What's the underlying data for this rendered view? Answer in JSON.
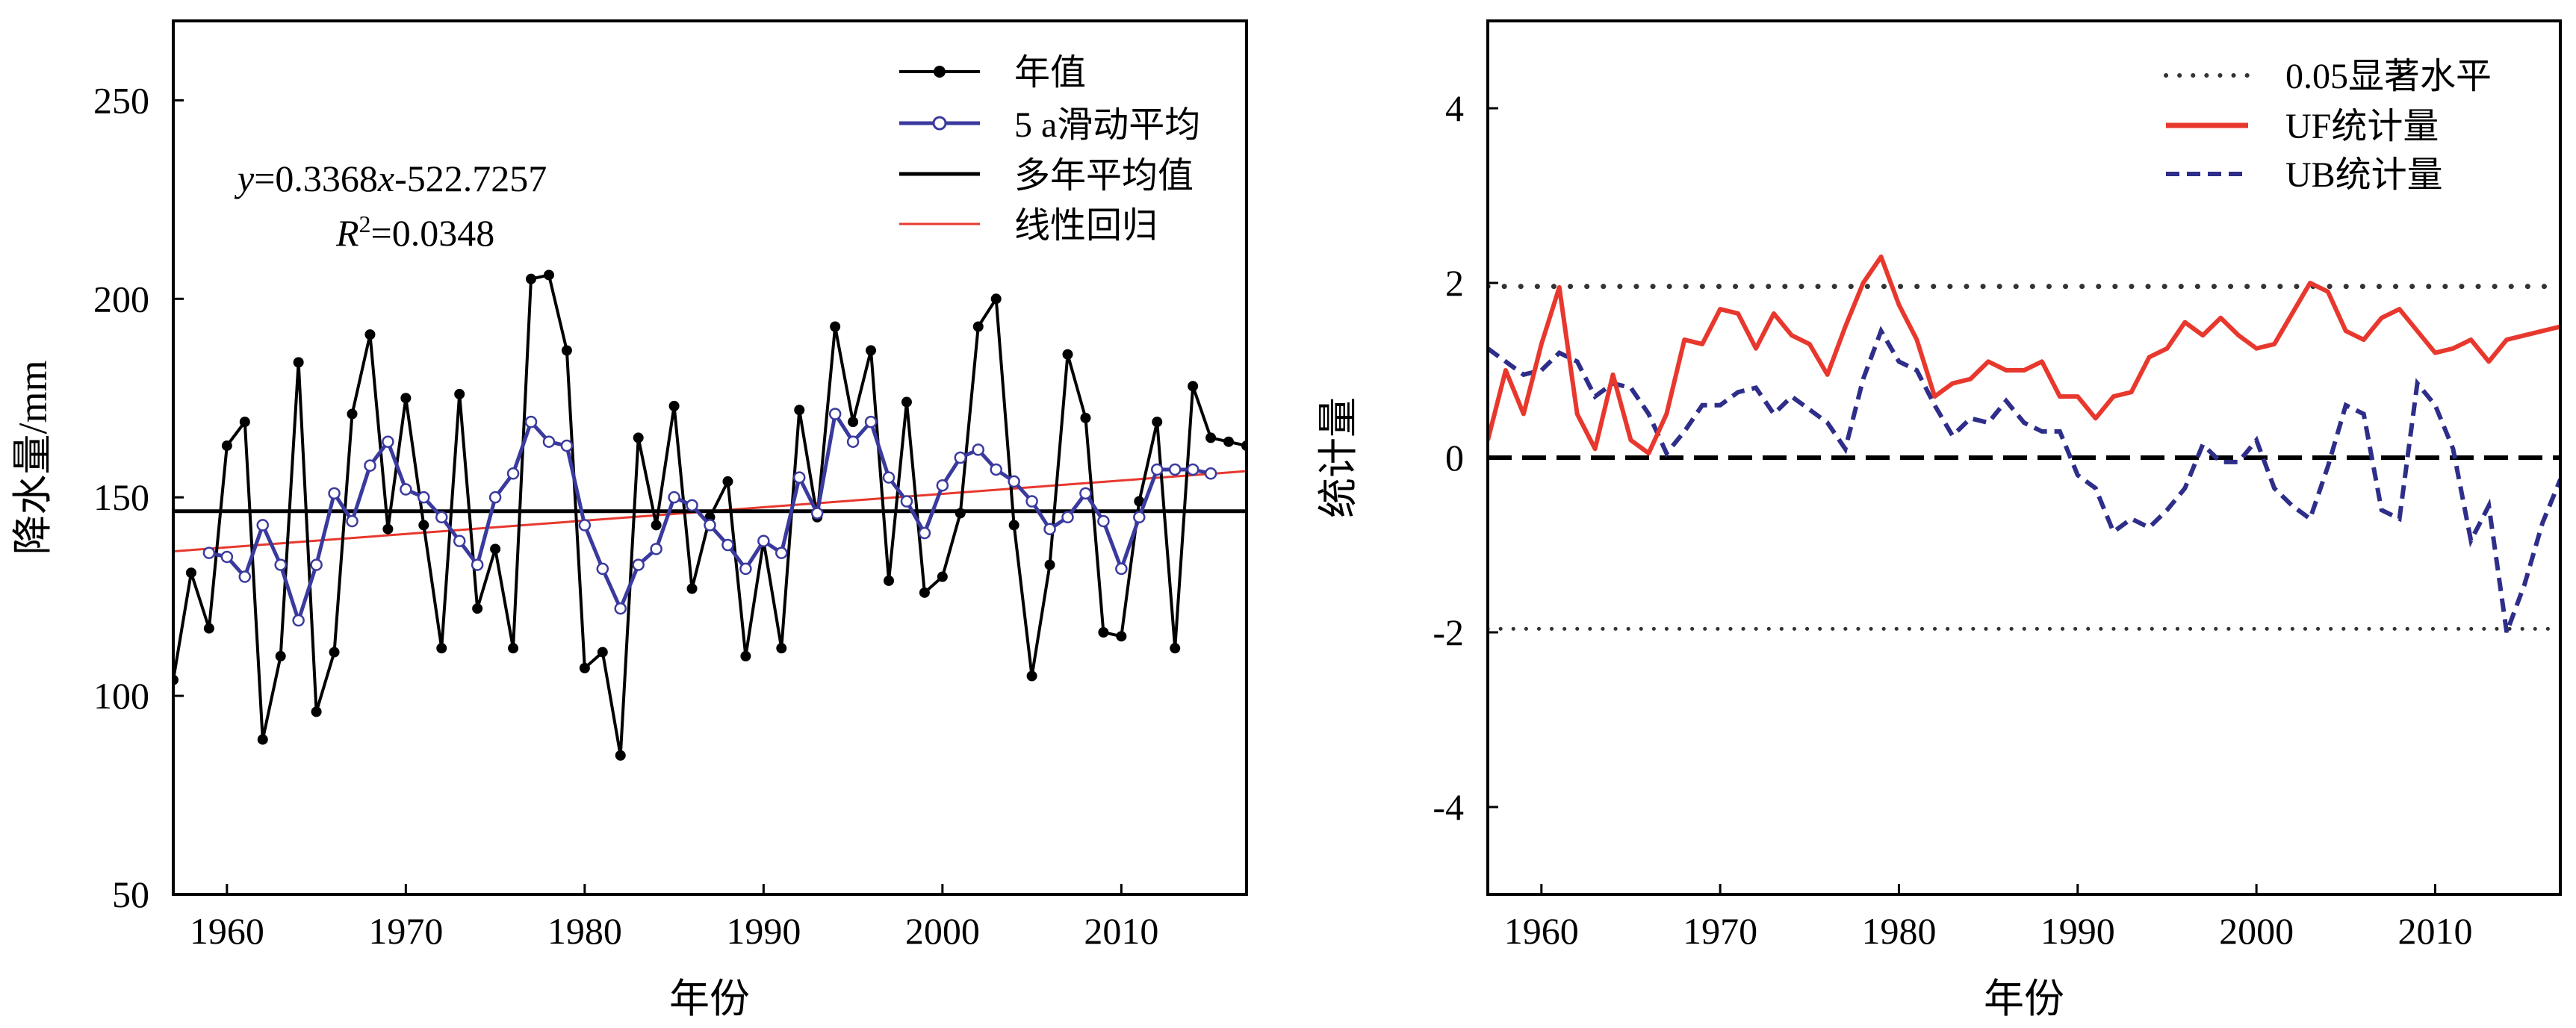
{
  "chart_data": [
    {
      "type": "line",
      "xlabel": "年份",
      "ylabel": "降水量/mm",
      "xlim": [
        1957,
        2017
      ],
      "ylim": [
        50,
        270
      ],
      "xticks": [
        1960,
        1970,
        1980,
        1990,
        2000,
        2010
      ],
      "yticks": [
        50,
        100,
        150,
        200,
        250
      ],
      "equation": {
        "line1": "y=0.3368x-522.7257",
        "line2": "R²=0.0348"
      },
      "legend_position": "top-right",
      "series": [
        {
          "name": "年值",
          "color": "#000000",
          "marker": "filled-circle",
          "x": [
            1957,
            1958,
            1959,
            1960,
            1961,
            1962,
            1963,
            1964,
            1965,
            1966,
            1967,
            1968,
            1969,
            1970,
            1971,
            1972,
            1973,
            1974,
            1975,
            1976,
            1977,
            1978,
            1979,
            1980,
            1981,
            1982,
            1983,
            1984,
            1985,
            1986,
            1987,
            1988,
            1989,
            1990,
            1991,
            1992,
            1993,
            1994,
            1995,
            1996,
            1997,
            1998,
            1999,
            2000,
            2001,
            2002,
            2003,
            2004,
            2005,
            2006,
            2007,
            2008,
            2009,
            2010,
            2011,
            2012,
            2013,
            2014,
            2015,
            2016,
            2017
          ],
          "values": [
            104,
            131,
            117,
            163,
            169,
            89,
            110,
            184,
            96,
            111,
            171,
            191,
            142,
            175,
            143,
            112,
            176,
            122,
            137,
            112,
            205,
            206,
            187,
            107,
            111,
            85,
            165,
            143,
            173,
            127,
            145,
            154,
            110,
            139,
            112,
            172,
            145,
            193,
            169,
            187,
            129,
            174,
            126,
            130,
            146,
            193,
            200,
            143,
            105,
            133,
            186,
            170,
            116,
            115,
            149,
            169,
            112,
            178,
            165,
            164,
            163
          ]
        },
        {
          "name": "5 a滑动平均",
          "color": "#3a3a9e",
          "marker": "open-circle",
          "x": [
            1959,
            1960,
            1961,
            1962,
            1963,
            1964,
            1965,
            1966,
            1967,
            1968,
            1969,
            1970,
            1971,
            1972,
            1973,
            1974,
            1975,
            1976,
            1977,
            1978,
            1979,
            1980,
            1981,
            1982,
            1983,
            1984,
            1985,
            1986,
            1987,
            1988,
            1989,
            1990,
            1991,
            1992,
            1993,
            1994,
            1995,
            1996,
            1997,
            1998,
            1999,
            2000,
            2001,
            2002,
            2003,
            2004,
            2005,
            2006,
            2007,
            2008,
            2009,
            2010,
            2011,
            2012,
            2013,
            2014,
            2015
          ],
          "values": [
            136,
            135,
            130,
            143,
            133,
            119,
            133,
            151,
            144,
            158,
            164,
            152,
            150,
            145,
            139,
            133,
            150,
            156,
            169,
            164,
            163,
            143,
            132,
            122,
            133,
            137,
            150,
            148,
            143,
            138,
            132,
            139,
            136,
            155,
            146,
            171,
            164,
            169,
            155,
            149,
            141,
            153,
            160,
            162,
            157,
            154,
            149,
            142,
            145,
            151,
            144,
            132,
            145,
            157,
            157,
            157,
            156
          ]
        },
        {
          "name": "多年平均值",
          "color": "#000000",
          "value": 146.5
        },
        {
          "name": "线性回归",
          "color": "#e8382e",
          "slope": 0.3368,
          "intercept": -522.7257
        }
      ]
    },
    {
      "type": "line",
      "xlabel": "年份",
      "ylabel": "统计量",
      "xlim": [
        1957,
        2017
      ],
      "ylim": [
        -5,
        5
      ],
      "xticks": [
        1960,
        1970,
        1980,
        1990,
        2000,
        2010
      ],
      "yticks": [
        -4,
        -2,
        0,
        2,
        4
      ],
      "legend_position": "top-right",
      "reference_lines": [
        {
          "name": "0.05显著水平",
          "values": [
            1.96,
            -1.96
          ],
          "color": "#333333",
          "style": "dotted"
        },
        {
          "value": 0,
          "color": "#000000",
          "style": "dashed"
        }
      ],
      "series": [
        {
          "name": "UF统计量",
          "color": "#e8382e",
          "style": "solid",
          "x": [
            1957,
            1958,
            1959,
            1960,
            1961,
            1962,
            1963,
            1964,
            1965,
            1966,
            1967,
            1968,
            1969,
            1970,
            1971,
            1972,
            1973,
            1974,
            1975,
            1976,
            1977,
            1978,
            1979,
            1980,
            1981,
            1982,
            1983,
            1984,
            1985,
            1986,
            1987,
            1988,
            1989,
            1990,
            1991,
            1992,
            1993,
            1994,
            1995,
            1996,
            1997,
            1998,
            1999,
            2000,
            2001,
            2002,
            2003,
            2004,
            2005,
            2006,
            2007,
            2008,
            2009,
            2010,
            2011,
            2012,
            2013,
            2014,
            2015,
            2016,
            2017
          ],
          "values": [
            0.2,
            1.0,
            0.5,
            1.3,
            1.95,
            0.5,
            0.1,
            0.95,
            0.2,
            0.05,
            0.5,
            1.35,
            1.3,
            1.7,
            1.65,
            1.25,
            1.65,
            1.4,
            1.3,
            0.95,
            1.5,
            2.0,
            2.3,
            1.75,
            1.35,
            0.7,
            0.85,
            0.9,
            1.1,
            1.0,
            1.0,
            1.1,
            0.7,
            0.7,
            0.45,
            0.7,
            0.75,
            1.15,
            1.25,
            1.55,
            1.4,
            1.6,
            1.4,
            1.25,
            1.3,
            1.65,
            2.0,
            1.9,
            1.45,
            1.35,
            1.6,
            1.7,
            1.45,
            1.2,
            1.25,
            1.35,
            1.1,
            1.35,
            1.4,
            1.45,
            1.5
          ]
        },
        {
          "name": "UB统计量",
          "color": "#2e2e8a",
          "style": "dashed",
          "x": [
            1957,
            1958,
            1959,
            1960,
            1961,
            1962,
            1963,
            1964,
            1965,
            1966,
            1967,
            1968,
            1969,
            1970,
            1971,
            1972,
            1973,
            1974,
            1975,
            1976,
            1977,
            1978,
            1979,
            1980,
            1981,
            1982,
            1983,
            1984,
            1985,
            1986,
            1987,
            1988,
            1989,
            1990,
            1991,
            1992,
            1993,
            1994,
            1995,
            1996,
            1997,
            1998,
            1999,
            2000,
            2001,
            2002,
            2003,
            2004,
            2005,
            2006,
            2007,
            2008,
            2009,
            2010,
            2011,
            2012,
            2013,
            2014,
            2015,
            2016,
            2017
          ],
          "values": [
            1.25,
            1.1,
            0.95,
            1.0,
            1.2,
            1.1,
            0.7,
            0.85,
            0.8,
            0.5,
            0.05,
            0.3,
            0.6,
            0.6,
            0.75,
            0.8,
            0.5,
            0.7,
            0.55,
            0.4,
            0.1,
            0.9,
            1.45,
            1.1,
            1.0,
            0.6,
            0.25,
            0.45,
            0.4,
            0.65,
            0.4,
            0.3,
            0.3,
            -0.2,
            -0.35,
            -0.85,
            -0.7,
            -0.8,
            -0.6,
            -0.35,
            0.15,
            -0.05,
            -0.05,
            0.2,
            -0.35,
            -0.55,
            -0.7,
            -0.1,
            0.6,
            0.5,
            -0.6,
            -0.7,
            0.85,
            0.6,
            0.1,
            -0.95,
            -0.55,
            -2.0,
            -1.45,
            -0.75,
            -0.25
          ]
        }
      ]
    }
  ]
}
